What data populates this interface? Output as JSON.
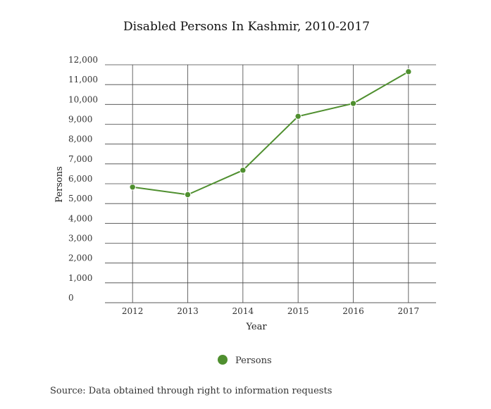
{
  "chart_data": {
    "type": "line",
    "title": "Disabled Persons In Kashmir, 2010-2017",
    "xlabel": "Year",
    "ylabel": "Persons",
    "x": [
      "2012",
      "2013",
      "2014",
      "2015",
      "2016",
      "2017"
    ],
    "y_ticks": [
      "0",
      "1,000",
      "2,000",
      "3,000",
      "4,000",
      "5,000",
      "6,000",
      "7,000",
      "8,000",
      "9,000",
      "10,000",
      "11,000",
      "12,000"
    ],
    "ylim": [
      0,
      12000
    ],
    "series": [
      {
        "name": "Persons",
        "values": [
          5830,
          5450,
          6680,
          9400,
          10050,
          11650
        ],
        "color": "#4f8f2f"
      }
    ],
    "grid": true,
    "legend": "bottom-center"
  },
  "source": "Source: Data obtained through right to information requests"
}
